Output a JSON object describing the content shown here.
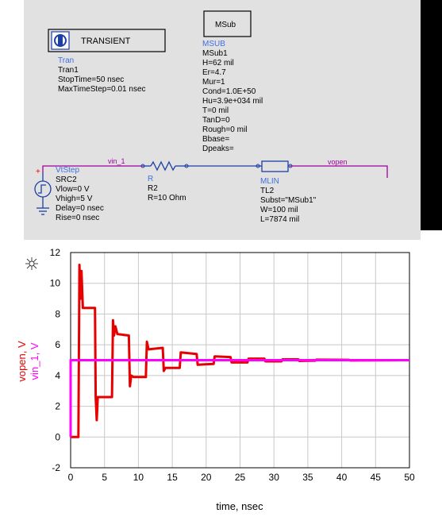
{
  "schematic": {
    "transient": {
      "title": "TRANSIENT",
      "lines": [
        "Tran",
        "Tran1",
        "StopTime=50 nsec",
        "MaxTimeStep=0.01 nsec"
      ]
    },
    "msub": {
      "title": "MSub",
      "lines": [
        "MSUB",
        "MSub1",
        "H=62 mil",
        "Er=4.7",
        "Mur=1",
        "Cond=1.0E+50",
        "Hu=3.9e+034 mil",
        "T=0 mil",
        "TanD=0",
        "Rough=0 mil",
        "Bbase=",
        "Dpeaks="
      ]
    },
    "source": {
      "lines": [
        "VtStep",
        "SRC2",
        "Vlow=0 V",
        "Vhigh=5 V",
        "Delay=0 nsec",
        "Rise=0 nsec"
      ],
      "plus": "+"
    },
    "resistor": {
      "lines": [
        "R",
        "R2",
        "R=10 Ohm"
      ]
    },
    "mlin": {
      "lines": [
        "MLIN",
        "TL2",
        "Subst=\"MSub1\"",
        "W=100 mil",
        "L=7874 mil"
      ]
    },
    "nets": {
      "vin": "vin_1",
      "vopen": "vopen"
    }
  },
  "chart_data": {
    "type": "line",
    "xlabel": "time, nsec",
    "ylabel_series": [
      "vin_1, V",
      "vopen, V"
    ],
    "xlim": [
      0,
      50
    ],
    "ylim": [
      -2,
      12
    ],
    "x_ticks": [
      0,
      5,
      10,
      15,
      20,
      25,
      30,
      35,
      40,
      45,
      50
    ],
    "y_ticks": [
      -2,
      0,
      2,
      4,
      6,
      8,
      10,
      12
    ],
    "grid": true,
    "series": [
      {
        "name": "vopen, V",
        "color": "#e60000",
        "points": [
          [
            0,
            0
          ],
          [
            1.15,
            0
          ],
          [
            1.3,
            11.2
          ],
          [
            1.45,
            9
          ],
          [
            1.6,
            10.8
          ],
          [
            1.8,
            8.4
          ],
          [
            3.6,
            8.4
          ],
          [
            3.7,
            2.6
          ],
          [
            3.85,
            1.1
          ],
          [
            4.0,
            2.6
          ],
          [
            6.1,
            2.6
          ],
          [
            6.25,
            7.6
          ],
          [
            6.4,
            6.6
          ],
          [
            6.6,
            7.2
          ],
          [
            6.9,
            6.7
          ],
          [
            8.6,
            6.6
          ],
          [
            8.75,
            3.3
          ],
          [
            8.95,
            4
          ],
          [
            9.3,
            3.9
          ],
          [
            11.1,
            3.9
          ],
          [
            11.25,
            6.2
          ],
          [
            11.5,
            5.7
          ],
          [
            13.6,
            5.8
          ],
          [
            13.75,
            4.3
          ],
          [
            14.0,
            4.5
          ],
          [
            16.1,
            4.5
          ],
          [
            16.25,
            5.5
          ],
          [
            18.6,
            5.4
          ],
          [
            18.75,
            4.7
          ],
          [
            21.1,
            4.75
          ],
          [
            21.25,
            5.25
          ],
          [
            23.6,
            5.2
          ],
          [
            23.75,
            4.85
          ],
          [
            26.1,
            4.85
          ],
          [
            26.25,
            5.1
          ],
          [
            28.6,
            5.1
          ],
          [
            28.75,
            4.92
          ],
          [
            31.1,
            4.92
          ],
          [
            31.25,
            5.05
          ],
          [
            33.6,
            5.05
          ],
          [
            33.75,
            4.95
          ],
          [
            36.1,
            4.97
          ],
          [
            36.25,
            5.03
          ],
          [
            41.1,
            5.02
          ],
          [
            41.25,
            4.98
          ],
          [
            50,
            5.0
          ]
        ]
      },
      {
        "name": "vin_1, V",
        "color": "#ff00ff",
        "points": [
          [
            0,
            0
          ],
          [
            0,
            5.0
          ],
          [
            50,
            5.0
          ]
        ]
      }
    ]
  }
}
